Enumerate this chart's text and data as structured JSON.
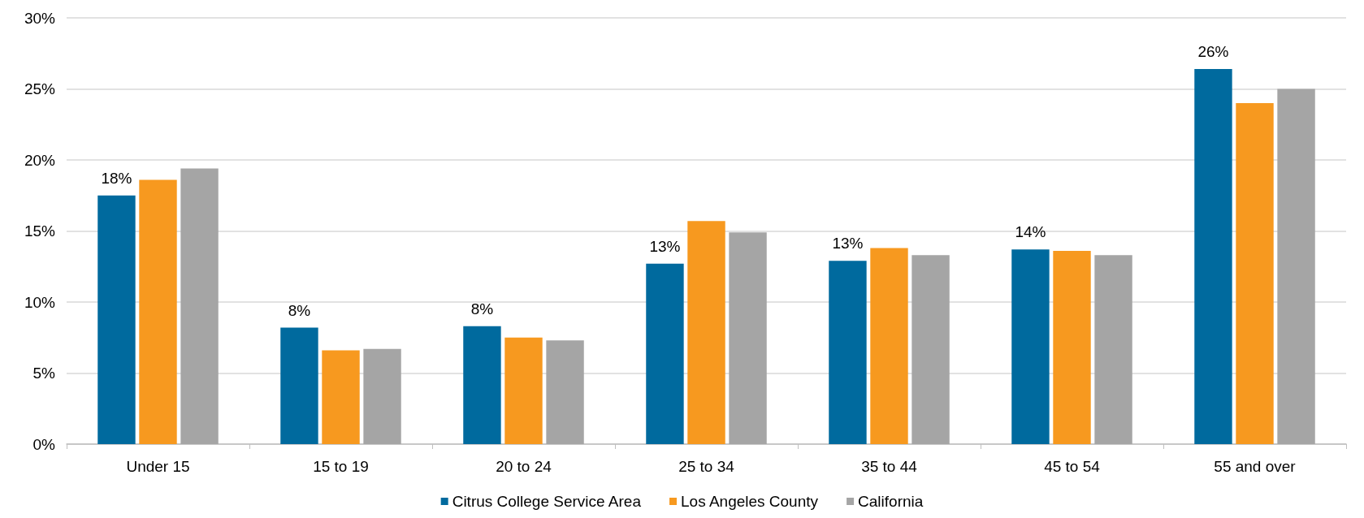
{
  "chart_data": {
    "type": "bar",
    "categories": [
      "Under 15",
      "15 to 19",
      "20 to 24",
      "25 to 34",
      "35 to 44",
      "45 to 54",
      "55 and over"
    ],
    "series": [
      {
        "name": "Citrus College Service Area",
        "color": "#006a9e",
        "values": [
          17.5,
          8.2,
          8.3,
          12.7,
          12.9,
          13.7,
          26.4
        ],
        "value_labels": [
          "18%",
          "8%",
          "8%",
          "13%",
          "13%",
          "14%",
          "26%"
        ]
      },
      {
        "name": "Los Angeles County",
        "color": "#f7991f",
        "values": [
          18.6,
          6.6,
          7.5,
          15.7,
          13.8,
          13.6,
          24.0
        ]
      },
      {
        "name": "California",
        "color": "#a5a5a5",
        "values": [
          19.4,
          6.7,
          7.3,
          14.9,
          13.3,
          13.3,
          25.0
        ]
      }
    ],
    "ylim": [
      0,
      30
    ],
    "yticks": [
      {
        "value": 0,
        "label": "0%"
      },
      {
        "value": 5,
        "label": "5%"
      },
      {
        "value": 10,
        "label": "10%"
      },
      {
        "value": 15,
        "label": "15%"
      },
      {
        "value": 20,
        "label": "20%"
      },
      {
        "value": 25,
        "label": "25%"
      },
      {
        "value": 30,
        "label": "30%"
      }
    ],
    "grid": "y",
    "legend": "bottom"
  }
}
